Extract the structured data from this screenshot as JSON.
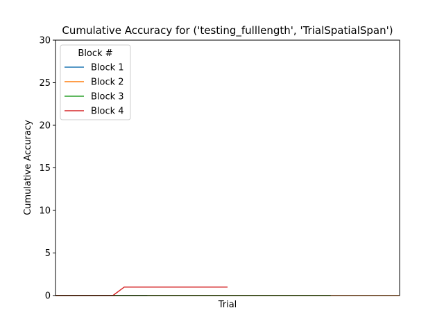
{
  "chart_data": {
    "type": "line",
    "title": "Cumulative Accuracy for ('testing_fulllength', 'TrialSpatialSpan')",
    "xlabel": "Trial",
    "ylabel": "Cumulative Accuracy",
    "ylim": [
      0,
      30
    ],
    "xlim": [
      0,
      30
    ],
    "yticks": [
      0,
      5,
      10,
      15,
      20,
      25,
      30
    ],
    "x_tick_labels_shown": false,
    "grid": false,
    "legend": {
      "title": "Block #",
      "placement": "top-left"
    },
    "series": [
      {
        "name": "Block 1",
        "color": "#1f77b4",
        "x": [
          0,
          8
        ],
        "y": [
          0,
          0
        ]
      },
      {
        "name": "Block 2",
        "color": "#ff7f0e",
        "x": [
          0,
          30
        ],
        "y": [
          0,
          0
        ]
      },
      {
        "name": "Block 3",
        "color": "#2ca02c",
        "x": [
          0,
          24
        ],
        "y": [
          0,
          0
        ]
      },
      {
        "name": "Block 4",
        "color": "#d62728",
        "x": [
          0,
          5,
          6,
          15
        ],
        "y": [
          0,
          0,
          1,
          1
        ]
      }
    ]
  }
}
